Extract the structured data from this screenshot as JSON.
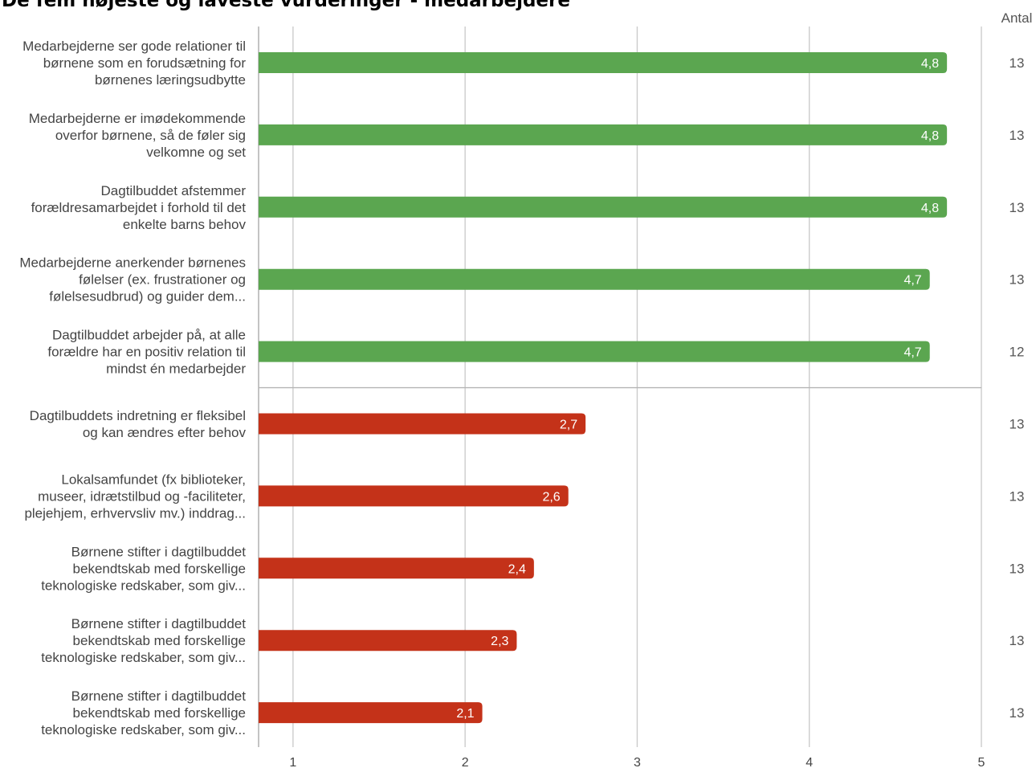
{
  "chart_data": {
    "type": "bar",
    "orientation": "horizontal",
    "title": "De fem højeste og laveste vurderinger - medarbejdere",
    "count_header": "Antal",
    "xlim": [
      0.8,
      5
    ],
    "xticks": [
      1,
      2,
      3,
      4,
      5
    ],
    "grid": true,
    "colors": {
      "high": "#5ba650",
      "low": "#c43219"
    },
    "categories": [
      {
        "lines": [
          "Medarbejderne ser gode relationer til",
          "børnene som en forudsætning for",
          "børnenes læringsudbytte"
        ],
        "value": 4.8,
        "value_label": "4,8",
        "count": 13,
        "group": "high"
      },
      {
        "lines": [
          "Medarbejderne er imødekommende",
          "overfor børnene, så de føler sig",
          "velkomne og set"
        ],
        "value": 4.8,
        "value_label": "4,8",
        "count": 13,
        "group": "high"
      },
      {
        "lines": [
          "Dagtilbuddet afstemmer",
          "forældresamarbejdet i forhold til det",
          "enkelte barns behov"
        ],
        "value": 4.8,
        "value_label": "4,8",
        "count": 13,
        "group": "high"
      },
      {
        "lines": [
          "Medarbejderne anerkender børnenes",
          "følelser (ex. frustrationer og",
          "følelsesudbrud) og guider dem..."
        ],
        "value": 4.7,
        "value_label": "4,7",
        "count": 13,
        "group": "high"
      },
      {
        "lines": [
          "Dagtilbuddet arbejder på, at alle",
          "forældre har en positiv relation til",
          "mindst én medarbejder"
        ],
        "value": 4.7,
        "value_label": "4,7",
        "count": 12,
        "group": "high"
      },
      {
        "lines": [
          "Dagtilbuddets indretning er fleksibel",
          "og kan ændres efter behov"
        ],
        "value": 2.7,
        "value_label": "2,7",
        "count": 13,
        "group": "low"
      },
      {
        "lines": [
          "Lokalsamfundet (fx biblioteker,",
          "museer, idrætstilbud og -faciliteter,",
          "plejehjem, erhvervsliv mv.) inddrag..."
        ],
        "value": 2.6,
        "value_label": "2,6",
        "count": 13,
        "group": "low"
      },
      {
        "lines": [
          "Børnene stifter i dagtilbuddet",
          "bekendtskab med forskellige",
          "teknologiske redskaber, som giv..."
        ],
        "value": 2.4,
        "value_label": "2,4",
        "count": 13,
        "group": "low"
      },
      {
        "lines": [
          "Børnene stifter i dagtilbuddet",
          "bekendtskab med forskellige",
          "teknologiske redskaber, som giv..."
        ],
        "value": 2.3,
        "value_label": "2,3",
        "count": 13,
        "group": "low"
      },
      {
        "lines": [
          "Børnene stifter i dagtilbuddet",
          "bekendtskab med forskellige",
          "teknologiske redskaber, som giv..."
        ],
        "value": 2.1,
        "value_label": "2,1",
        "count": 13,
        "group": "low"
      }
    ]
  }
}
